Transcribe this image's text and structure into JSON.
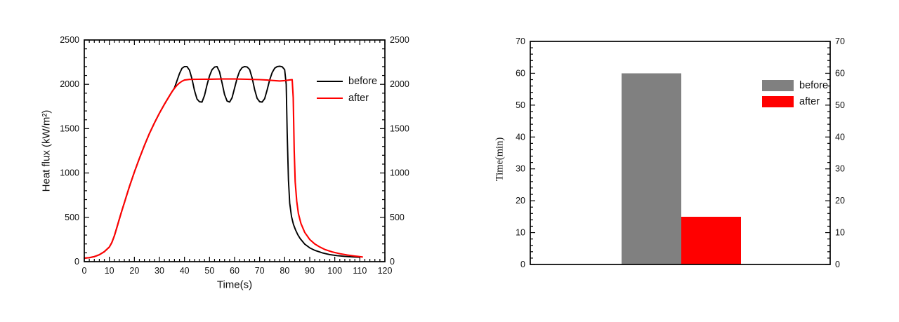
{
  "figure": {
    "background": "#ffffff",
    "text_color": "#111111",
    "frame_color": "#000000"
  },
  "chart_data": [
    {
      "type": "line",
      "title": "",
      "xlabel": "Time(s)",
      "ylabel": "Heat flux (kW/m²)",
      "xlim": [
        0,
        120
      ],
      "ylim": [
        0,
        2500
      ],
      "x_ticks": [
        0,
        10,
        20,
        30,
        40,
        50,
        60,
        70,
        80,
        90,
        100,
        110,
        120
      ],
      "y_ticks": [
        0,
        500,
        1000,
        1500,
        2000,
        2500
      ],
      "x_minor_step": 2,
      "y_minor_step": 100,
      "grid": false,
      "legend_position": "upper-right-inside",
      "series": [
        {
          "name": "before",
          "color": "#000000",
          "points": [
            [
              0,
              40
            ],
            [
              2,
              45
            ],
            [
              4,
              57
            ],
            [
              6,
              78
            ],
            [
              8,
              112
            ],
            [
              10,
              165
            ],
            [
              11,
              215
            ],
            [
              12,
              290
            ],
            [
              13,
              385
            ],
            [
              14,
              480
            ],
            [
              15,
              575
            ],
            [
              16,
              665
            ],
            [
              17,
              755
            ],
            [
              18,
              845
            ],
            [
              20,
              1010
            ],
            [
              22,
              1165
            ],
            [
              24,
              1310
            ],
            [
              26,
              1445
            ],
            [
              28,
              1565
            ],
            [
              30,
              1675
            ],
            [
              32,
              1775
            ],
            [
              34,
              1870
            ],
            [
              35,
              1915
            ],
            [
              36,
              1960
            ],
            [
              37,
              2040
            ],
            [
              38,
              2120
            ],
            [
              39,
              2180
            ],
            [
              40,
              2200
            ],
            [
              41,
              2200
            ],
            [
              42,
              2160
            ],
            [
              43,
              2060
            ],
            [
              44,
              1930
            ],
            [
              45,
              1835
            ],
            [
              46,
              1803
            ],
            [
              47,
              1800
            ],
            [
              48,
              1875
            ],
            [
              49,
              1995
            ],
            [
              50,
              2095
            ],
            [
              51,
              2165
            ],
            [
              52,
              2195
            ],
            [
              53,
              2200
            ],
            [
              54,
              2140
            ],
            [
              55,
              2015
            ],
            [
              56,
              1885
            ],
            [
              57,
              1812
            ],
            [
              58,
              1800
            ],
            [
              59,
              1848
            ],
            [
              60,
              1958
            ],
            [
              61,
              2068
            ],
            [
              62,
              2148
            ],
            [
              63,
              2188
            ],
            [
              64,
              2200
            ],
            [
              65,
              2196
            ],
            [
              66,
              2168
            ],
            [
              67,
              2072
            ],
            [
              68,
              1942
            ],
            [
              69,
              1842
            ],
            [
              70,
              1804
            ],
            [
              71,
              1800
            ],
            [
              72,
              1838
            ],
            [
              73,
              1938
            ],
            [
              74,
              2048
            ],
            [
              75,
              2132
            ],
            [
              76,
              2182
            ],
            [
              77,
              2200
            ],
            [
              78,
              2204
            ],
            [
              79,
              2198
            ],
            [
              80,
              2165
            ],
            [
              80.6,
              2000
            ],
            [
              81,
              1450
            ],
            [
              81.5,
              920
            ],
            [
              82,
              660
            ],
            [
              82.7,
              510
            ],
            [
              83.5,
              420
            ],
            [
              84.3,
              360
            ],
            [
              85.2,
              305
            ],
            [
              86.2,
              260
            ],
            [
              88,
              198
            ],
            [
              90,
              156
            ],
            [
              92,
              128
            ],
            [
              95,
              100
            ],
            [
              98,
              80
            ],
            [
              101,
              68
            ],
            [
              104,
              60
            ],
            [
              107,
              54
            ],
            [
              110,
              50
            ]
          ]
        },
        {
          "name": "after",
          "color": "#ff0000",
          "points": [
            [
              0,
              40
            ],
            [
              2,
              45
            ],
            [
              4,
              57
            ],
            [
              6,
              78
            ],
            [
              8,
              112
            ],
            [
              10,
              165
            ],
            [
              11,
              215
            ],
            [
              12,
              290
            ],
            [
              13,
              385
            ],
            [
              14,
              480
            ],
            [
              15,
              575
            ],
            [
              16,
              665
            ],
            [
              17,
              755
            ],
            [
              18,
              845
            ],
            [
              20,
              1010
            ],
            [
              22,
              1165
            ],
            [
              24,
              1310
            ],
            [
              26,
              1445
            ],
            [
              28,
              1565
            ],
            [
              30,
              1675
            ],
            [
              32,
              1775
            ],
            [
              34,
              1870
            ],
            [
              35,
              1915
            ],
            [
              36,
              1955
            ],
            [
              37,
              1990
            ],
            [
              38,
              2015
            ],
            [
              39,
              2035
            ],
            [
              40,
              2048
            ],
            [
              42,
              2055
            ],
            [
              45,
              2057
            ],
            [
              50,
              2058
            ],
            [
              55,
              2060
            ],
            [
              60,
              2060
            ],
            [
              65,
              2057
            ],
            [
              70,
              2053
            ],
            [
              73,
              2048
            ],
            [
              76,
              2042
            ],
            [
              78,
              2038
            ],
            [
              80,
              2042
            ],
            [
              82,
              2050
            ],
            [
              83,
              2052
            ],
            [
              83.4,
              1850
            ],
            [
              83.8,
              1250
            ],
            [
              84.2,
              900
            ],
            [
              84.8,
              680
            ],
            [
              85.5,
              540
            ],
            [
              86.5,
              430
            ],
            [
              88,
              330
            ],
            [
              90,
              250
            ],
            [
              92,
              200
            ],
            [
              94,
              165
            ],
            [
              96,
              138
            ],
            [
              99,
              110
            ],
            [
              102,
              90
            ],
            [
              105,
              75
            ],
            [
              108,
              63
            ],
            [
              111,
              53
            ]
          ]
        }
      ]
    },
    {
      "type": "bar",
      "title": "",
      "xlabel": "",
      "ylabel": "Time(min)",
      "ylim": [
        0,
        70
      ],
      "y_ticks": [
        0,
        10,
        20,
        30,
        40,
        50,
        60,
        70
      ],
      "y_minor_step": 2,
      "grid": false,
      "legend_position": "upper-right-inside",
      "categories": [
        "before",
        "after"
      ],
      "values": [
        60,
        15
      ],
      "colors": [
        "#808080",
        "#ff0000"
      ]
    }
  ]
}
